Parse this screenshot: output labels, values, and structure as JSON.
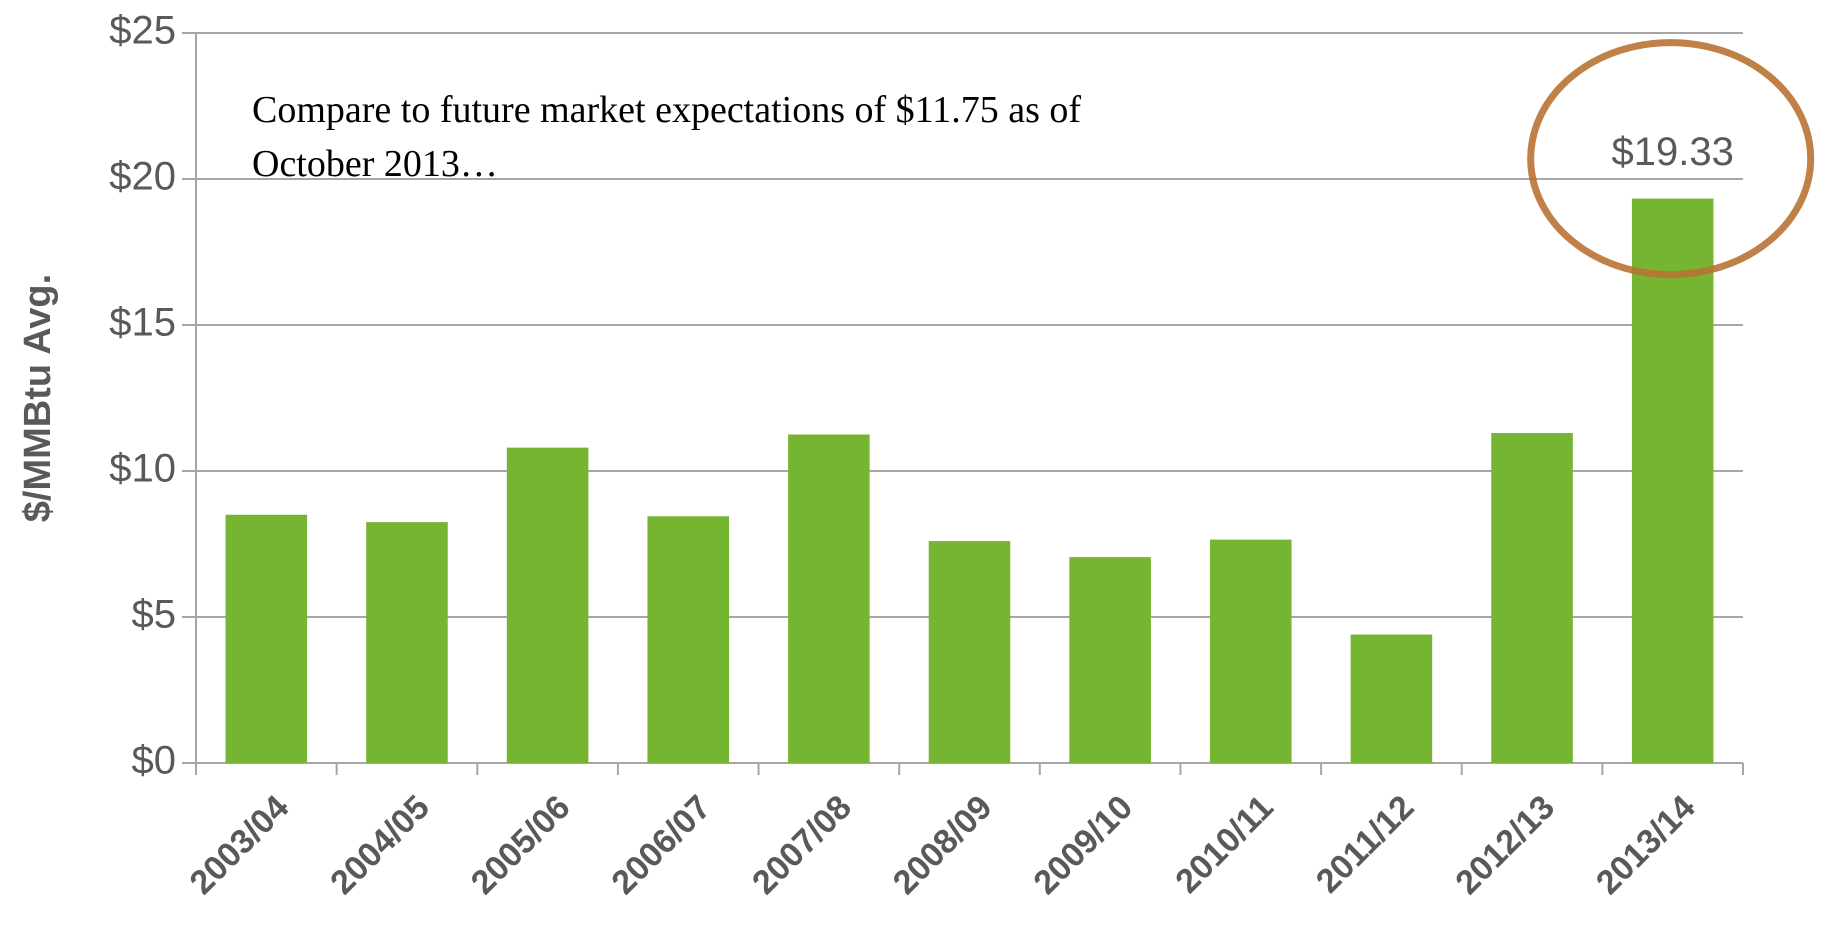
{
  "chart_data": {
    "type": "bar",
    "y_label": "$/MMBtu Avg.",
    "annotation": [
      "Compare to future market expectations of $11.75 as of",
      "October 2013…"
    ],
    "categories": [
      "2003/04",
      "2004/05",
      "2005/06",
      "2006/07",
      "2007/08",
      "2008/09",
      "2009/10",
      "2010/11",
      "2011/12",
      "2012/13",
      "2013/14"
    ],
    "values": [
      8.5,
      8.25,
      10.8,
      8.45,
      11.25,
      7.6,
      7.05,
      7.65,
      4.4,
      11.3,
      19.33
    ],
    "value_labels": [
      null,
      null,
      null,
      null,
      null,
      null,
      null,
      null,
      null,
      null,
      "$19.33"
    ],
    "color": "#76b531",
    "ylim": [
      0,
      25
    ],
    "yticks": [
      {
        "value": 0,
        "label": "$0"
      },
      {
        "value": 5,
        "label": "$5"
      },
      {
        "value": 10,
        "label": "$10"
      },
      {
        "value": 15,
        "label": "$15"
      },
      {
        "value": 20,
        "label": "$20"
      },
      {
        "value": 25,
        "label": "$25"
      }
    ],
    "grid": true
  }
}
